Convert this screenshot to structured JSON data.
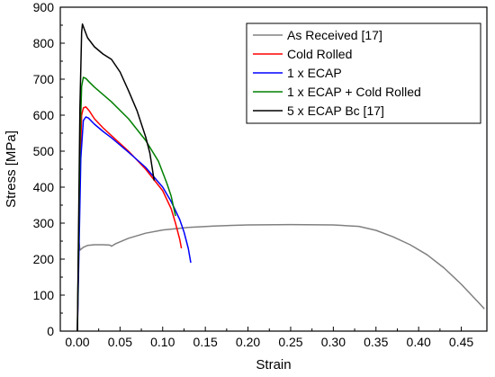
{
  "chart_data": {
    "type": "line",
    "title": "",
    "xlabel": "Strain",
    "ylabel": "Stress [MPa]",
    "xlim": [
      -0.02,
      0.48
    ],
    "ylim": [
      0,
      900
    ],
    "x_ticks": [
      "0.00",
      "0.05",
      "0.10",
      "0.15",
      "0.20",
      "0.25",
      "0.30",
      "0.35",
      "0.40",
      "0.45"
    ],
    "y_ticks": [
      "0",
      "100",
      "200",
      "300",
      "400",
      "500",
      "600",
      "700",
      "800",
      "900"
    ],
    "legend_position": "top-right",
    "grid": false,
    "series": [
      {
        "name": "As Received [17]",
        "color": "#808080",
        "points": [
          [
            0.0,
            0
          ],
          [
            0.0015,
            258
          ],
          [
            0.003,
            225
          ],
          [
            0.007,
            233
          ],
          [
            0.012,
            238
          ],
          [
            0.02,
            240
          ],
          [
            0.03,
            240
          ],
          [
            0.038,
            239
          ],
          [
            0.04,
            236
          ],
          [
            0.045,
            243
          ],
          [
            0.06,
            258
          ],
          [
            0.08,
            272
          ],
          [
            0.1,
            281
          ],
          [
            0.13,
            288
          ],
          [
            0.16,
            292
          ],
          [
            0.2,
            295
          ],
          [
            0.25,
            296
          ],
          [
            0.3,
            295
          ],
          [
            0.33,
            291
          ],
          [
            0.35,
            280
          ],
          [
            0.37,
            262
          ],
          [
            0.39,
            240
          ],
          [
            0.41,
            212
          ],
          [
            0.43,
            175
          ],
          [
            0.45,
            130
          ],
          [
            0.47,
            80
          ],
          [
            0.477,
            62
          ]
        ]
      },
      {
        "name": "Cold Rolled",
        "color": "#ff0000",
        "points": [
          [
            0.0,
            0
          ],
          [
            0.003,
            440
          ],
          [
            0.005,
            600
          ],
          [
            0.007,
            620
          ],
          [
            0.01,
            623
          ],
          [
            0.014,
            612
          ],
          [
            0.02,
            590
          ],
          [
            0.03,
            565
          ],
          [
            0.04,
            543
          ],
          [
            0.06,
            500
          ],
          [
            0.08,
            450
          ],
          [
            0.1,
            390
          ],
          [
            0.11,
            340
          ],
          [
            0.115,
            300
          ],
          [
            0.12,
            255
          ],
          [
            0.122,
            230
          ]
        ]
      },
      {
        "name": "1 x ECAP",
        "color": "#0000ff",
        "points": [
          [
            0.0,
            0
          ],
          [
            0.004,
            480
          ],
          [
            0.007,
            585
          ],
          [
            0.01,
            595
          ],
          [
            0.013,
            592
          ],
          [
            0.02,
            575
          ],
          [
            0.03,
            555
          ],
          [
            0.04,
            537
          ],
          [
            0.06,
            497
          ],
          [
            0.08,
            455
          ],
          [
            0.1,
            400
          ],
          [
            0.11,
            360
          ],
          [
            0.12,
            310
          ],
          [
            0.125,
            275
          ],
          [
            0.13,
            230
          ],
          [
            0.133,
            190
          ]
        ]
      },
      {
        "name": "1 x ECAP + Cold Rolled",
        "color": "#008000",
        "points": [
          [
            0.0,
            0
          ],
          [
            0.003,
            520
          ],
          [
            0.005,
            680
          ],
          [
            0.007,
            705
          ],
          [
            0.01,
            702
          ],
          [
            0.014,
            692
          ],
          [
            0.02,
            678
          ],
          [
            0.04,
            637
          ],
          [
            0.06,
            590
          ],
          [
            0.08,
            530
          ],
          [
            0.095,
            472
          ],
          [
            0.105,
            410
          ],
          [
            0.11,
            375
          ],
          [
            0.115,
            320
          ]
        ]
      },
      {
        "name": "5 x ECAP Bc [17]",
        "color": "#000000",
        "points": [
          [
            0.0,
            0
          ],
          [
            0.003,
            620
          ],
          [
            0.005,
            830
          ],
          [
            0.006,
            853
          ],
          [
            0.008,
            840
          ],
          [
            0.012,
            815
          ],
          [
            0.02,
            790
          ],
          [
            0.03,
            770
          ],
          [
            0.04,
            755
          ],
          [
            0.05,
            720
          ],
          [
            0.06,
            668
          ],
          [
            0.07,
            612
          ],
          [
            0.08,
            540
          ],
          [
            0.085,
            495
          ],
          [
            0.09,
            418
          ]
        ]
      }
    ]
  }
}
